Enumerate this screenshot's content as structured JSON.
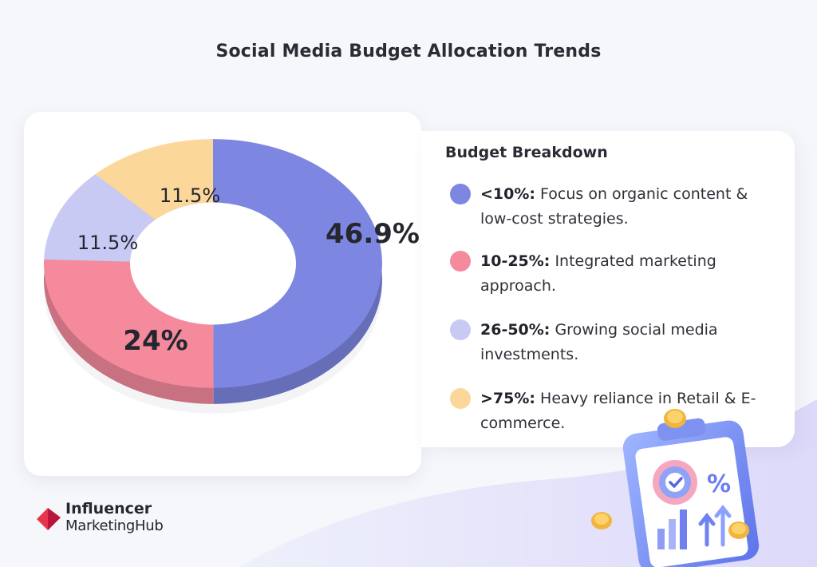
{
  "title": "Social Media Budget Allocation Trends",
  "chart_data": {
    "type": "pie",
    "variant": "donut",
    "categories": [
      "<10%",
      "10-25%",
      "26-50%",
      ">75%"
    ],
    "values": [
      46.9,
      24,
      11.5,
      11.5
    ],
    "labels": [
      "46.9%",
      "24%",
      "11.5%",
      "11.5%"
    ],
    "colors": [
      "#7d86e0",
      "#f48a9c",
      "#c8caf4",
      "#fcd79a"
    ]
  },
  "legend": {
    "heading": "Budget Breakdown",
    "items": [
      {
        "key": "<10%:",
        "text": "Focus on organic content & low-cost strategies.",
        "color": "#7d86e0"
      },
      {
        "key": "10-25%:",
        "text": "Integrated marketing approach.",
        "color": "#f48a9c"
      },
      {
        "key": "26-50%:",
        "text": "Growing social media investments.",
        "color": "#c8caf4"
      },
      {
        "key": ">75%:",
        "text": "Heavy reliance in Retail & E-commerce.",
        "color": "#fcd79a"
      }
    ]
  },
  "logo": {
    "line1": "Influencer",
    "line2": "MarketingHub"
  },
  "illustration": {
    "percent_symbol": "%",
    "icon": "checkmark-icon"
  }
}
